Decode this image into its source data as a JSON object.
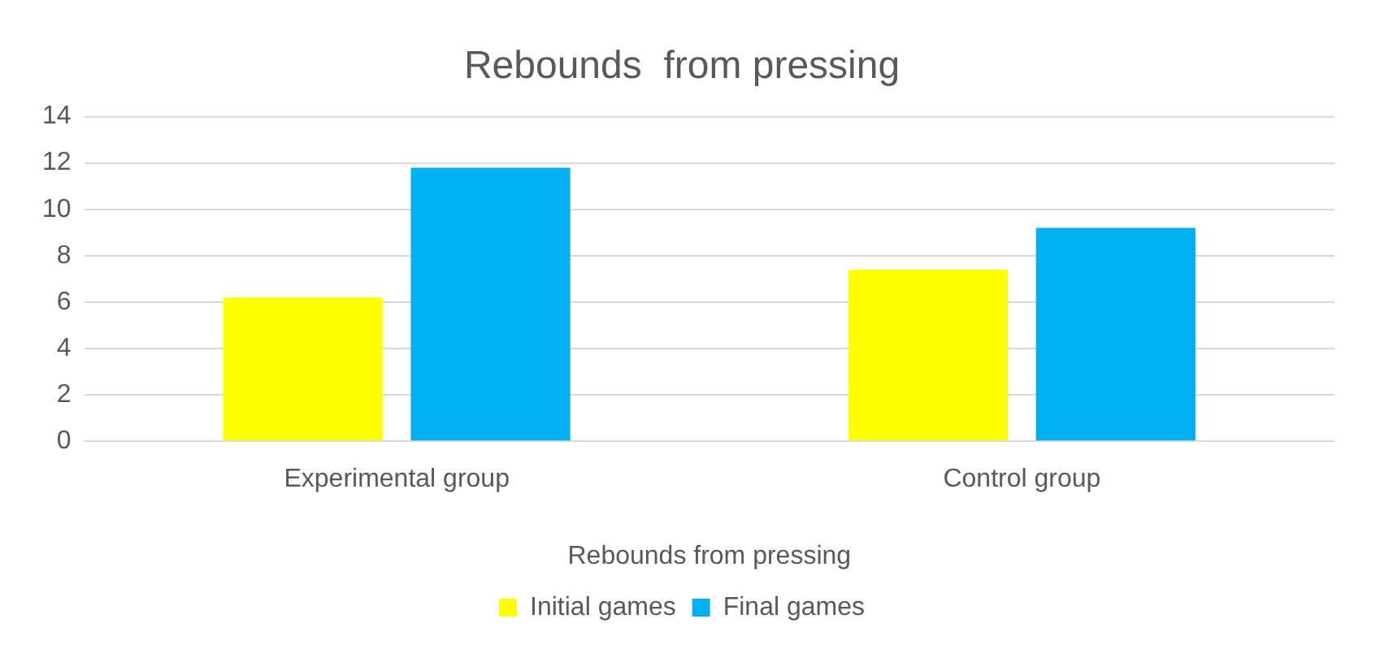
{
  "chart_data": {
    "type": "bar",
    "title": "Rebounds  from pressing",
    "xlabel": "Rebounds from pressing",
    "categories": [
      "Experimental group",
      "Control group"
    ],
    "series": [
      {
        "name": "Initial games",
        "color": "#ffff00",
        "values": [
          6.2,
          7.4
        ]
      },
      {
        "name": "Final games",
        "color": "#00b0f0",
        "values": [
          11.8,
          9.2
        ]
      }
    ],
    "ylim": [
      0,
      14
    ],
    "yticks": [
      0,
      2,
      4,
      6,
      8,
      10,
      12,
      14
    ],
    "grid": "y",
    "legend": "bottom"
  }
}
